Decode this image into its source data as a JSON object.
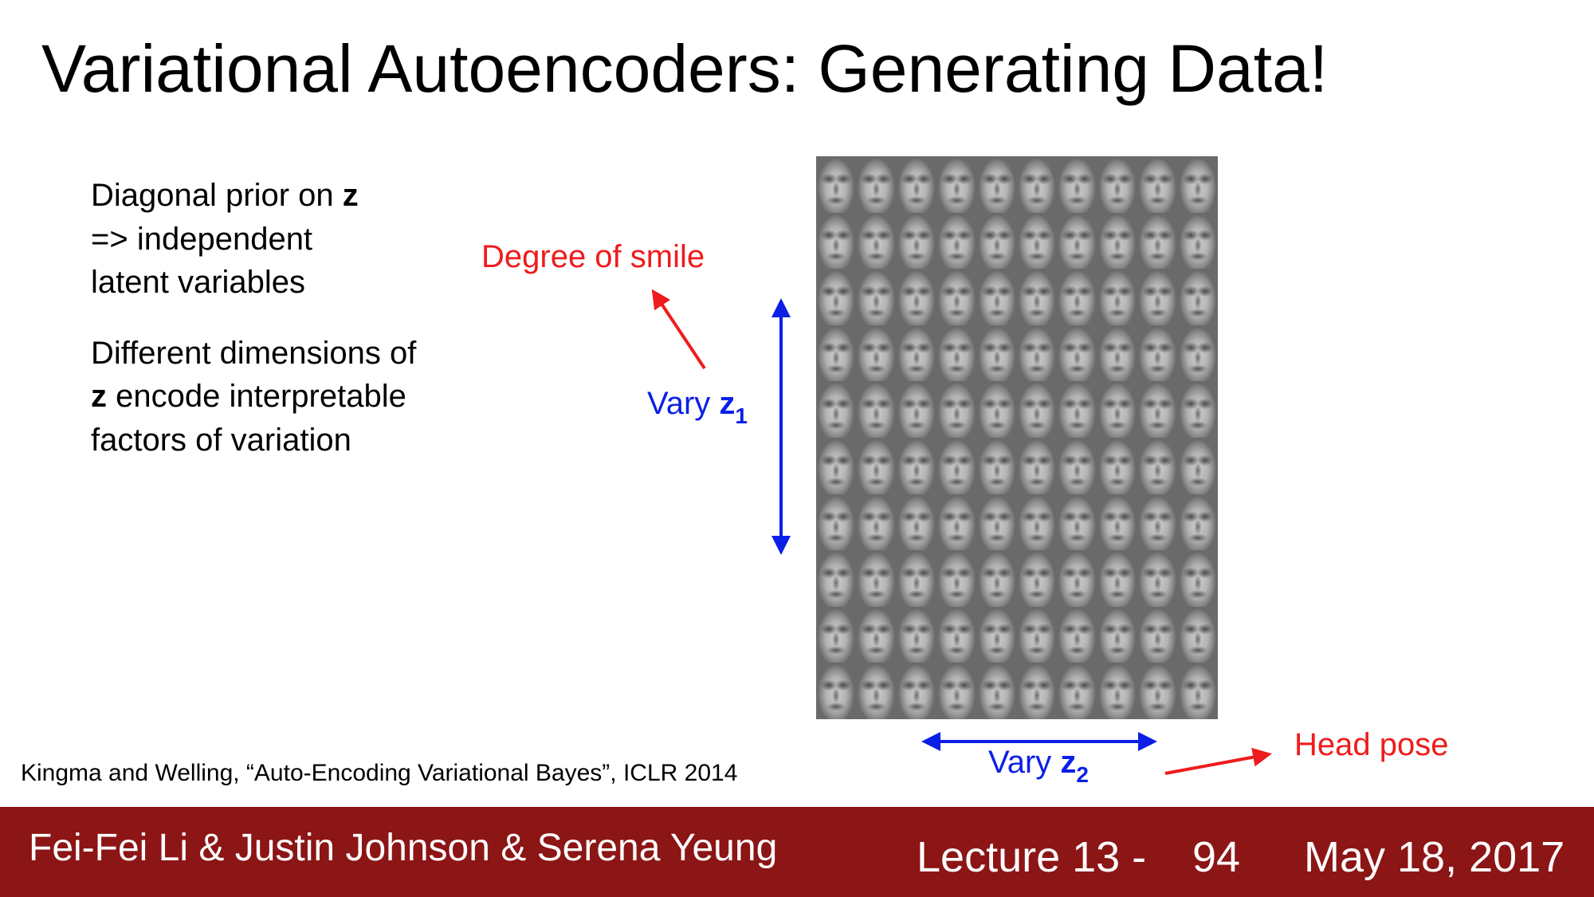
{
  "title": "Variational Autoencoders: Generating Data!",
  "bullets": {
    "p1_before": "Diagonal prior on ",
    "p1_bold": "z",
    "p1_after": "=> independent latent variables",
    "p2_before": "Different dimensions of ",
    "p2_bold": "z",
    "p2_after": "encode interpretable factors of variation"
  },
  "labels": {
    "smile": "Degree of smile",
    "head_pose": "Head pose",
    "vary_z1_text": "Vary ",
    "vary_z1_var": "z",
    "vary_z1_sub": "1",
    "vary_z2_text": "Vary ",
    "vary_z2_var": "z",
    "vary_z2_sub": "2"
  },
  "citation": "Kingma and Welling, “Auto-Encoding Variational Bayes”, ICLR 2014",
  "face_grid": {
    "rows": 10,
    "cols": 10
  },
  "footer": {
    "authors": "Fei-Fei Li & Justin Johnson & Serena Yeung",
    "lecture": "Lecture 13 -",
    "page": "94",
    "date": "May 18, 2017"
  },
  "colors": {
    "accent_red": "#ee1c1c",
    "accent_blue": "#0b1fe6",
    "footer_bg": "#8c1515"
  }
}
